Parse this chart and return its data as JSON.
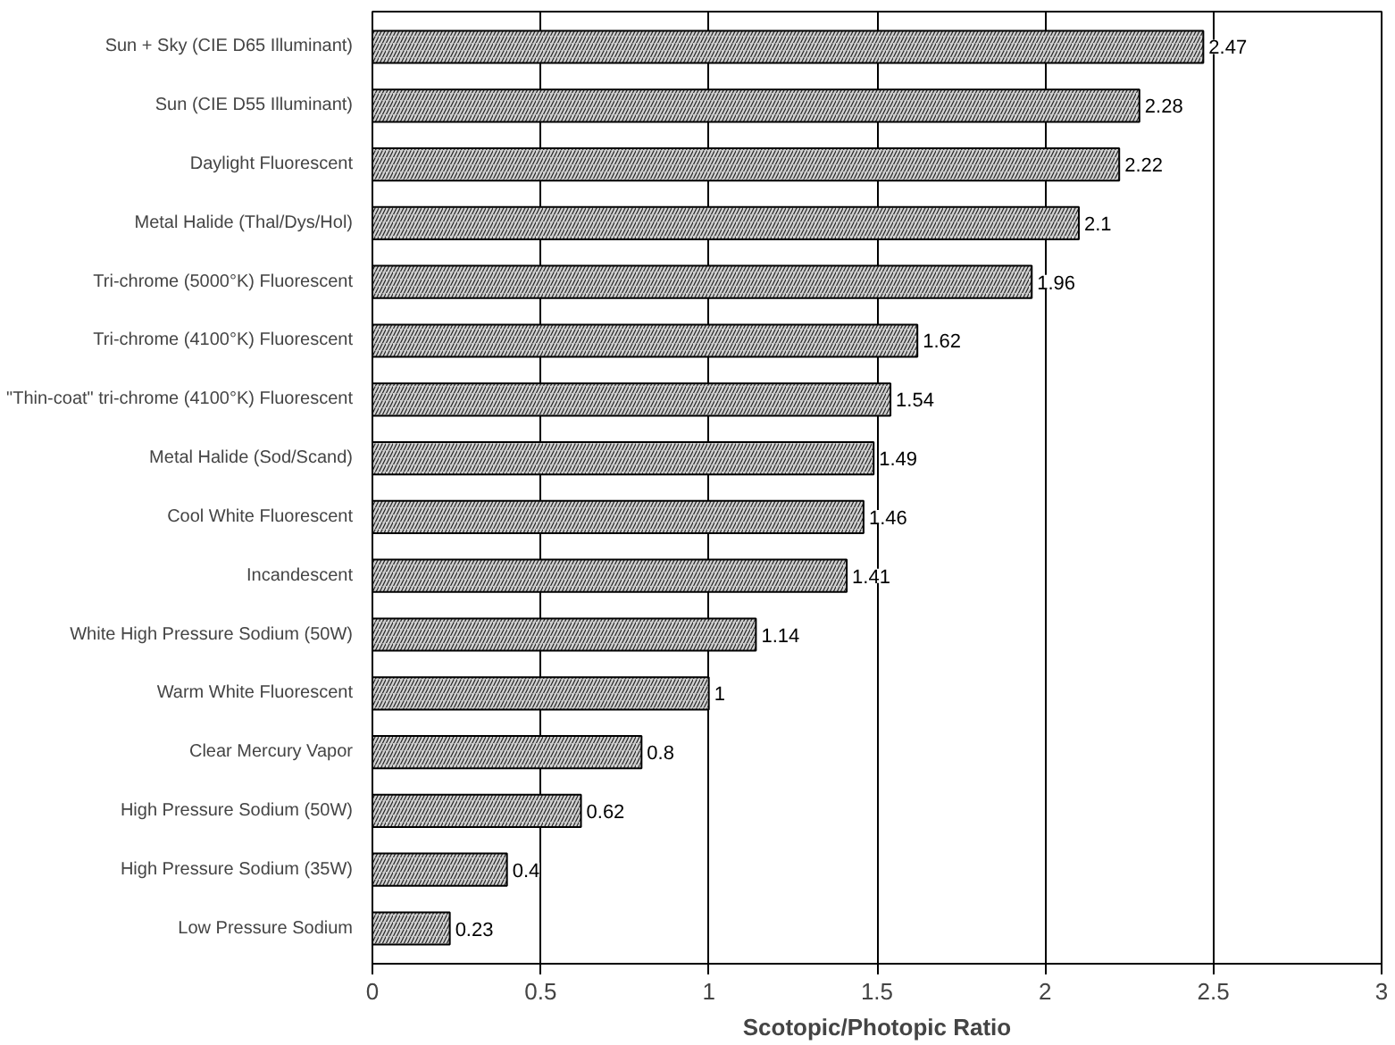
{
  "chart_data": {
    "type": "bar",
    "orientation": "horizontal",
    "xlabel": "Scotopic/Photopic Ratio",
    "categories": [
      "Sun + Sky (CIE D65 Illuminant)",
      "Sun (CIE D55 Illuminant)",
      "Daylight Fluorescent",
      "Metal Halide (Thal/Dys/Hol)",
      "Tri-chrome (5000°K) Fluorescent",
      "Tri-chrome (4100°K) Fluorescent",
      "\"Thin-coat\" tri-chrome (4100°K) Fluorescent",
      "Metal Halide (Sod/Scand)",
      "Cool White Fluorescent",
      "Incandescent",
      "White High Pressure Sodium (50W)",
      "Warm White Fluorescent",
      "Clear Mercury Vapor",
      "High Pressure Sodium (50W)",
      "High Pressure Sodium (35W)",
      "Low Pressure Sodium"
    ],
    "values": [
      2.47,
      2.28,
      2.22,
      2.1,
      1.96,
      1.62,
      1.54,
      1.49,
      1.46,
      1.41,
      1.14,
      1,
      0.8,
      0.62,
      0.4,
      0.23
    ],
    "color": "#d0d0d0",
    "xlim": [
      0,
      3
    ],
    "xticks": [
      0,
      0.5,
      1,
      1.5,
      2,
      2.5,
      3
    ],
    "grid": "x",
    "data_labels": true
  }
}
